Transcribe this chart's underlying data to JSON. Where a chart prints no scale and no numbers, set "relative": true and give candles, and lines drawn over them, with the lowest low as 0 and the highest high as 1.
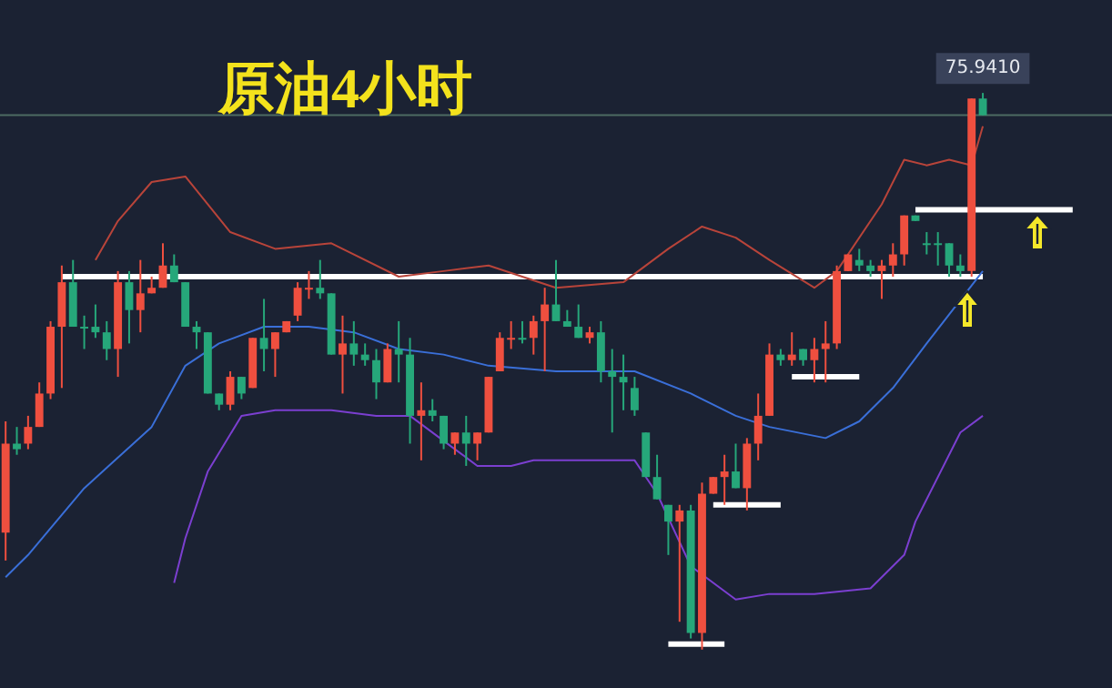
{
  "chart_data": {
    "type": "candlestick",
    "title": "原油4小时",
    "relative": true,
    "legend": false,
    "marker": "none",
    "annotations": [
      "75.9410"
    ],
    "categories": [
      null,
      null,
      null,
      null,
      null,
      null,
      null,
      null,
      null,
      null,
      null,
      null,
      null,
      null,
      null,
      null,
      null,
      null,
      null,
      null,
      null,
      null,
      null,
      null,
      null,
      null,
      null,
      null,
      null,
      null,
      null,
      null,
      null,
      null,
      null,
      null,
      null,
      null,
      null,
      null,
      null,
      null,
      null,
      null,
      null,
      null,
      null,
      null,
      null,
      null,
      null,
      null,
      null,
      null,
      null,
      null,
      null,
      null,
      null,
      null,
      null,
      null,
      null,
      null,
      null,
      null,
      null,
      null,
      null,
      null,
      null,
      null,
      null,
      null,
      null,
      null,
      null,
      null,
      null,
      null,
      null,
      null,
      null,
      null,
      null,
      null,
      null,
      null,
      null,
      null,
      null,
      null,
      null,
      null,
      null,
      null,
      null,
      null,
      null
    ],
    "ohlc": [
      [
        0.21,
        0.41,
        0.16,
        0.37
      ],
      [
        0.37,
        0.4,
        0.35,
        0.36
      ],
      [
        0.37,
        0.42,
        0.36,
        0.4
      ],
      [
        0.4,
        0.48,
        0.4,
        0.46
      ],
      [
        0.46,
        0.59,
        0.45,
        0.58
      ],
      [
        0.58,
        0.69,
        0.47,
        0.66
      ],
      [
        0.66,
        0.7,
        0.58,
        0.58
      ],
      [
        0.58,
        0.6,
        0.54,
        0.58
      ],
      [
        0.58,
        0.62,
        0.56,
        0.57
      ],
      [
        0.57,
        0.59,
        0.52,
        0.54
      ],
      [
        0.54,
        0.68,
        0.49,
        0.66
      ],
      [
        0.66,
        0.68,
        0.55,
        0.61
      ],
      [
        0.61,
        0.7,
        0.57,
        0.64
      ],
      [
        0.64,
        0.67,
        0.64,
        0.65
      ],
      [
        0.65,
        0.73,
        0.65,
        0.69
      ],
      [
        0.69,
        0.71,
        0.66,
        0.66
      ],
      [
        0.66,
        0.66,
        0.58,
        0.58
      ],
      [
        0.58,
        0.59,
        0.54,
        0.57
      ],
      [
        0.57,
        0.57,
        0.46,
        0.46
      ],
      [
        0.46,
        0.46,
        0.43,
        0.44
      ],
      [
        0.44,
        0.5,
        0.43,
        0.49
      ],
      [
        0.49,
        0.49,
        0.45,
        0.46
      ],
      [
        0.47,
        0.56,
        0.47,
        0.56
      ],
      [
        0.56,
        0.63,
        0.5,
        0.54
      ],
      [
        0.54,
        0.57,
        0.49,
        0.57
      ],
      [
        0.57,
        0.59,
        0.57,
        0.59
      ],
      [
        0.6,
        0.66,
        0.59,
        0.65
      ],
      [
        0.65,
        0.68,
        0.63,
        0.65
      ],
      [
        0.65,
        0.7,
        0.63,
        0.64
      ],
      [
        0.64,
        0.64,
        0.53,
        0.53
      ],
      [
        0.53,
        0.6,
        0.46,
        0.55
      ],
      [
        0.55,
        0.59,
        0.51,
        0.53
      ],
      [
        0.53,
        0.55,
        0.51,
        0.52
      ],
      [
        0.52,
        0.54,
        0.45,
        0.48
      ],
      [
        0.48,
        0.55,
        0.48,
        0.54
      ],
      [
        0.54,
        0.59,
        0.48,
        0.53
      ],
      [
        0.53,
        0.56,
        0.37,
        0.42
      ],
      [
        0.42,
        0.48,
        0.34,
        0.43
      ],
      [
        0.43,
        0.45,
        0.41,
        0.42
      ],
      [
        0.42,
        0.42,
        0.36,
        0.37
      ],
      [
        0.37,
        0.39,
        0.35,
        0.39
      ],
      [
        0.39,
        0.42,
        0.33,
        0.37
      ],
      [
        0.37,
        0.39,
        0.34,
        0.39
      ],
      [
        0.39,
        0.49,
        0.39,
        0.49
      ],
      [
        0.5,
        0.57,
        0.5,
        0.56
      ],
      [
        0.56,
        0.59,
        0.54,
        0.56
      ],
      [
        0.56,
        0.59,
        0.55,
        0.56
      ],
      [
        0.56,
        0.6,
        0.53,
        0.59
      ],
      [
        0.59,
        0.65,
        0.5,
        0.62
      ],
      [
        0.62,
        0.7,
        0.59,
        0.59
      ],
      [
        0.59,
        0.61,
        0.58,
        0.58
      ],
      [
        0.58,
        0.62,
        0.56,
        0.56
      ],
      [
        0.56,
        0.58,
        0.55,
        0.57
      ],
      [
        0.57,
        0.59,
        0.48,
        0.5
      ],
      [
        0.5,
        0.54,
        0.39,
        0.49
      ],
      [
        0.49,
        0.53,
        0.43,
        0.48
      ],
      [
        0.47,
        0.49,
        0.42,
        0.43
      ],
      [
        0.39,
        0.39,
        0.31,
        0.31
      ],
      [
        0.31,
        0.35,
        0.27,
        0.27
      ],
      [
        0.26,
        0.26,
        0.17,
        0.23
      ],
      [
        0.23,
        0.26,
        0.05,
        0.25
      ],
      [
        0.25,
        0.26,
        0.02,
        0.03
      ],
      [
        0.03,
        0.3,
        0,
        0.28
      ],
      [
        0.28,
        0.31,
        0.28,
        0.31
      ],
      [
        0.31,
        0.35,
        0.26,
        0.32
      ],
      [
        0.32,
        0.37,
        0.29,
        0.29
      ],
      [
        0.29,
        0.38,
        0.25,
        0.37
      ],
      [
        0.37,
        0.46,
        0.34,
        0.42
      ],
      [
        0.42,
        0.55,
        0.42,
        0.53
      ],
      [
        0.53,
        0.54,
        0.51,
        0.52
      ],
      [
        0.52,
        0.57,
        0.51,
        0.53
      ],
      [
        0.54,
        0.54,
        0.51,
        0.52
      ],
      [
        0.52,
        0.56,
        0.48,
        0.54
      ],
      [
        0.54,
        0.59,
        0.48,
        0.55
      ],
      [
        0.55,
        0.69,
        0.54,
        0.68
      ],
      [
        0.68,
        0.71,
        0.68,
        0.71
      ],
      [
        0.7,
        0.72,
        0.68,
        0.69
      ],
      [
        0.69,
        0.7,
        0.67,
        0.68
      ],
      [
        0.68,
        0.7,
        0.63,
        0.69
      ],
      [
        0.69,
        0.73,
        0.67,
        0.71
      ],
      [
        0.71,
        0.78,
        0.69,
        0.78
      ],
      [
        0.78,
        0.78,
        0.77,
        0.77
      ],
      [
        0.73,
        0.75,
        0.71,
        0.73
      ],
      [
        0.73,
        0.75,
        0.69,
        0.73
      ],
      [
        0.73,
        0.73,
        0.67,
        0.69
      ],
      [
        0.69,
        0.71,
        0.67,
        0.68
      ],
      [
        0.68,
        0.99,
        0.67,
        0.99
      ],
      [
        0.99,
        1,
        0.96,
        0.96
      ],
      null,
      null,
      null,
      null,
      null,
      null,
      null,
      null,
      null,
      null,
      null
    ],
    "colors": [
      "#ef4f3f",
      "#26a77a",
      "#ef4f3f",
      "#ef4f3f",
      "#ef4f3f",
      "#ef4f3f",
      "#26a77a",
      "#26a77a",
      "#26a77a",
      "#26a77a",
      "#ef4f3f",
      "#26a77a",
      "#ef4f3f",
      "#ef4f3f",
      "#ef4f3f",
      "#26a77a",
      "#26a77a",
      "#26a77a",
      "#26a77a",
      "#26a77a",
      "#ef4f3f",
      "#26a77a",
      "#ef4f3f",
      "#26a77a",
      "#ef4f3f",
      "#ef4f3f",
      "#ef4f3f",
      "#ef4f3f",
      "#26a77a",
      "#26a77a",
      "#ef4f3f",
      "#26a77a",
      "#26a77a",
      "#26a77a",
      "#ef4f3f",
      "#26a77a",
      "#26a77a",
      "#ef4f3f",
      "#26a77a",
      "#26a77a",
      "#ef4f3f",
      "#26a77a",
      "#ef4f3f",
      "#ef4f3f",
      "#ef4f3f",
      "#ef4f3f",
      "#26a77a",
      "#ef4f3f",
      "#ef4f3f",
      "#26a77a",
      "#26a77a",
      "#26a77a",
      "#ef4f3f",
      "#26a77a",
      "#26a77a",
      "#26a77a",
      "#26a77a",
      "#26a77a",
      "#26a77a",
      "#26a77a",
      "#ef4f3f",
      "#26a77a",
      "#ef4f3f",
      "#ef4f3f",
      "#ef4f3f",
      "#26a77a",
      "#ef4f3f",
      "#ef4f3f",
      "#ef4f3f",
      "#26a77a",
      "#ef4f3f",
      "#26a77a",
      "#ef4f3f",
      "#ef4f3f",
      "#ef4f3f",
      "#ef4f3f",
      "#26a77a",
      "#26a77a",
      "#ef4f3f",
      "#ef4f3f",
      "#ef4f3f",
      "#26a77a",
      "#26a77a",
      "#26a77a",
      "#26a77a",
      "#26a77a",
      "#ef4f3f",
      "#26a77a",
      null,
      null,
      null,
      null,
      null,
      null,
      null,
      null,
      null,
      null,
      null
    ],
    "series": [
      {
        "type": "line",
        "color": "#b8443a",
        "values": [
          null,
          null,
          null,
          null,
          null,
          null,
          null,
          null,
          0.7,
          null,
          0.77,
          null,
          null,
          0.84,
          null,
          null,
          0.85,
          null,
          null,
          null,
          0.75,
          null,
          null,
          null,
          0.72,
          null,
          null,
          null,
          null,
          0.73,
          null,
          null,
          null,
          null,
          null,
          0.67,
          null,
          null,
          null,
          0.68,
          null,
          null,
          null,
          0.69,
          null,
          null,
          0.67,
          null,
          null,
          0.65,
          null,
          null,
          null,
          null,
          null,
          0.66,
          null,
          null,
          null,
          0.72,
          null,
          null,
          0.76,
          null,
          null,
          0.74,
          null,
          null,
          0.7,
          null,
          null,
          null,
          0.65,
          null,
          0.68,
          null,
          null,
          null,
          0.8,
          null,
          0.88,
          null,
          0.87,
          null,
          0.88,
          null,
          0.87,
          0.94,
          null,
          null,
          null,
          null,
          null,
          null,
          null,
          null,
          null,
          null,
          null
        ]
      },
      {
        "type": "line",
        "color": "#3a6fd8",
        "values": [
          0.13,
          null,
          0.17,
          null,
          null,
          null,
          null,
          0.29,
          null,
          null,
          null,
          null,
          null,
          0.4,
          null,
          null,
          0.51,
          null,
          null,
          0.55,
          null,
          null,
          null,
          0.58,
          null,
          null,
          null,
          0.58,
          null,
          null,
          null,
          0.57,
          null,
          null,
          null,
          0.54,
          null,
          null,
          null,
          0.53,
          null,
          null,
          null,
          0.51,
          null,
          null,
          null,
          null,
          null,
          0.5,
          null,
          null,
          null,
          null,
          null,
          null,
          0.5,
          null,
          null,
          null,
          null,
          0.46,
          null,
          null,
          null,
          0.42,
          null,
          null,
          0.4,
          null,
          null,
          null,
          null,
          0.38,
          null,
          null,
          0.41,
          null,
          null,
          0.47,
          null,
          null,
          0.55,
          null,
          null,
          null,
          null,
          0.68,
          null,
          null,
          null,
          null,
          null,
          null,
          null,
          null,
          null,
          null,
          null
        ]
      },
      {
        "type": "line",
        "color": "#7b3fd0",
        "values": [
          null,
          null,
          null,
          null,
          null,
          null,
          null,
          null,
          null,
          null,
          null,
          null,
          null,
          null,
          null,
          0.12,
          0.2,
          null,
          0.32,
          null,
          null,
          0.42,
          null,
          null,
          0.43,
          null,
          null,
          null,
          null,
          0.43,
          null,
          null,
          null,
          0.42,
          null,
          null,
          0.42,
          null,
          null,
          null,
          0.36,
          null,
          0.33,
          null,
          null,
          0.33,
          null,
          0.34,
          null,
          null,
          null,
          null,
          null,
          null,
          null,
          null,
          0.34,
          null,
          0.28,
          null,
          null,
          0.15,
          null,
          null,
          null,
          0.09,
          null,
          null,
          0.1,
          null,
          null,
          null,
          0.1,
          null,
          null,
          null,
          null,
          0.11,
          null,
          null,
          0.17,
          0.23,
          null,
          null,
          null,
          0.39,
          null,
          0.42,
          null,
          null,
          null,
          null,
          null,
          null,
          null,
          null,
          null,
          null,
          null
        ]
      },
      {
        "type": "line",
        "color": "#ffffff",
        "values": [
          null,
          null,
          null,
          null,
          null,
          0.67,
          null,
          null,
          null,
          null,
          null,
          null,
          null,
          null,
          null,
          null,
          null,
          null,
          null,
          null,
          null,
          null,
          null,
          null,
          null,
          null,
          null,
          null,
          null,
          null,
          null,
          null,
          null,
          null,
          null,
          null,
          null,
          null,
          null,
          null,
          null,
          null,
          null,
          null,
          null,
          null,
          null,
          null,
          null,
          null,
          null,
          null,
          null,
          null,
          null,
          null,
          null,
          null,
          null,
          null,
          null,
          null,
          null,
          null,
          null,
          null,
          null,
          null,
          null,
          null,
          null,
          null,
          null,
          null,
          null,
          null,
          null,
          null,
          null,
          null,
          null,
          null,
          null,
          null,
          null,
          null,
          null,
          0.67,
          null,
          null,
          null,
          null,
          null,
          null,
          null,
          null,
          null,
          null,
          null
        ]
      },
      {
        "type": "line",
        "color": "#ffffff",
        "values": [
          null,
          null,
          null,
          null,
          null,
          null,
          null,
          null,
          null,
          null,
          null,
          null,
          null,
          null,
          null,
          null,
          null,
          null,
          null,
          null,
          null,
          null,
          null,
          null,
          null,
          null,
          null,
          null,
          null,
          null,
          null,
          null,
          null,
          null,
          null,
          null,
          null,
          null,
          null,
          null,
          null,
          null,
          null,
          null,
          null,
          null,
          null,
          null,
          null,
          null,
          null,
          null,
          null,
          null,
          null,
          null,
          null,
          null,
          null,
          null,
          null,
          null,
          null,
          null,
          null,
          null,
          null,
          null,
          null,
          null,
          null,
          null,
          null,
          null,
          null,
          null,
          null,
          null,
          null,
          null,
          null,
          0.79,
          null,
          null,
          null,
          null,
          null,
          null,
          null,
          null,
          null,
          null,
          null,
          null,
          null,
          0.79,
          null,
          null,
          null
        ]
      },
      {
        "type": "line",
        "color": "#ffffff",
        "values": [
          null,
          null,
          null,
          null,
          null,
          null,
          null,
          null,
          null,
          null,
          null,
          null,
          null,
          null,
          null,
          null,
          null,
          null,
          null,
          null,
          null,
          null,
          null,
          null,
          null,
          null,
          null,
          null,
          null,
          null,
          null,
          null,
          null,
          null,
          null,
          null,
          null,
          null,
          null,
          null,
          null,
          null,
          null,
          null,
          null,
          null,
          null,
          null,
          null,
          null,
          null,
          null,
          null,
          null,
          null,
          null,
          null,
          null,
          null,
          null,
          null,
          null,
          null,
          null,
          null,
          null,
          null,
          null,
          null,
          null,
          0.49,
          null,
          null,
          null,
          null,
          null,
          0.49,
          null,
          null,
          null,
          null,
          null,
          null,
          null,
          null,
          null,
          null,
          null,
          null,
          null,
          null,
          null,
          null,
          null,
          null,
          null,
          null,
          null,
          null
        ]
      },
      {
        "type": "line",
        "color": "#ffffff",
        "values": [
          null,
          null,
          null,
          null,
          null,
          null,
          null,
          null,
          null,
          null,
          null,
          null,
          null,
          null,
          null,
          null,
          null,
          null,
          null,
          null,
          null,
          null,
          null,
          null,
          null,
          null,
          null,
          null,
          null,
          null,
          null,
          null,
          null,
          null,
          null,
          null,
          null,
          null,
          null,
          null,
          null,
          null,
          null,
          null,
          null,
          null,
          null,
          null,
          null,
          null,
          null,
          null,
          null,
          null,
          null,
          null,
          null,
          null,
          null,
          null,
          null,
          null,
          null,
          0.26,
          null,
          null,
          null,
          null,
          null,
          0.26,
          null,
          null,
          null,
          null,
          null,
          null,
          null,
          null,
          null,
          null,
          null,
          null,
          null,
          null,
          null,
          null,
          null,
          null,
          null,
          null,
          null,
          null,
          null,
          null,
          null,
          null,
          null,
          null,
          null
        ]
      },
      {
        "type": "line",
        "color": "#ffffff",
        "values": [
          null,
          null,
          null,
          null,
          null,
          null,
          null,
          null,
          null,
          null,
          null,
          null,
          null,
          null,
          null,
          null,
          null,
          null,
          null,
          null,
          null,
          null,
          null,
          null,
          null,
          null,
          null,
          null,
          null,
          null,
          null,
          null,
          null,
          null,
          null,
          null,
          null,
          null,
          null,
          null,
          null,
          null,
          null,
          null,
          null,
          null,
          null,
          null,
          null,
          null,
          null,
          null,
          null,
          null,
          null,
          null,
          null,
          null,
          null,
          0.01,
          null,
          null,
          null,
          null,
          0.01,
          null,
          null,
          null,
          null,
          null,
          null,
          null,
          null,
          null,
          null,
          null,
          null,
          null,
          null,
          null,
          null,
          null,
          null,
          null,
          null,
          null,
          null,
          null,
          null,
          null,
          null,
          null,
          null,
          null,
          null,
          null,
          null,
          null,
          null
        ]
      }
    ],
    "ref_lines": [
      {
        "axis": "y",
        "value": 0.96,
        "color": "#4d6b63"
      }
    ]
  }
}
